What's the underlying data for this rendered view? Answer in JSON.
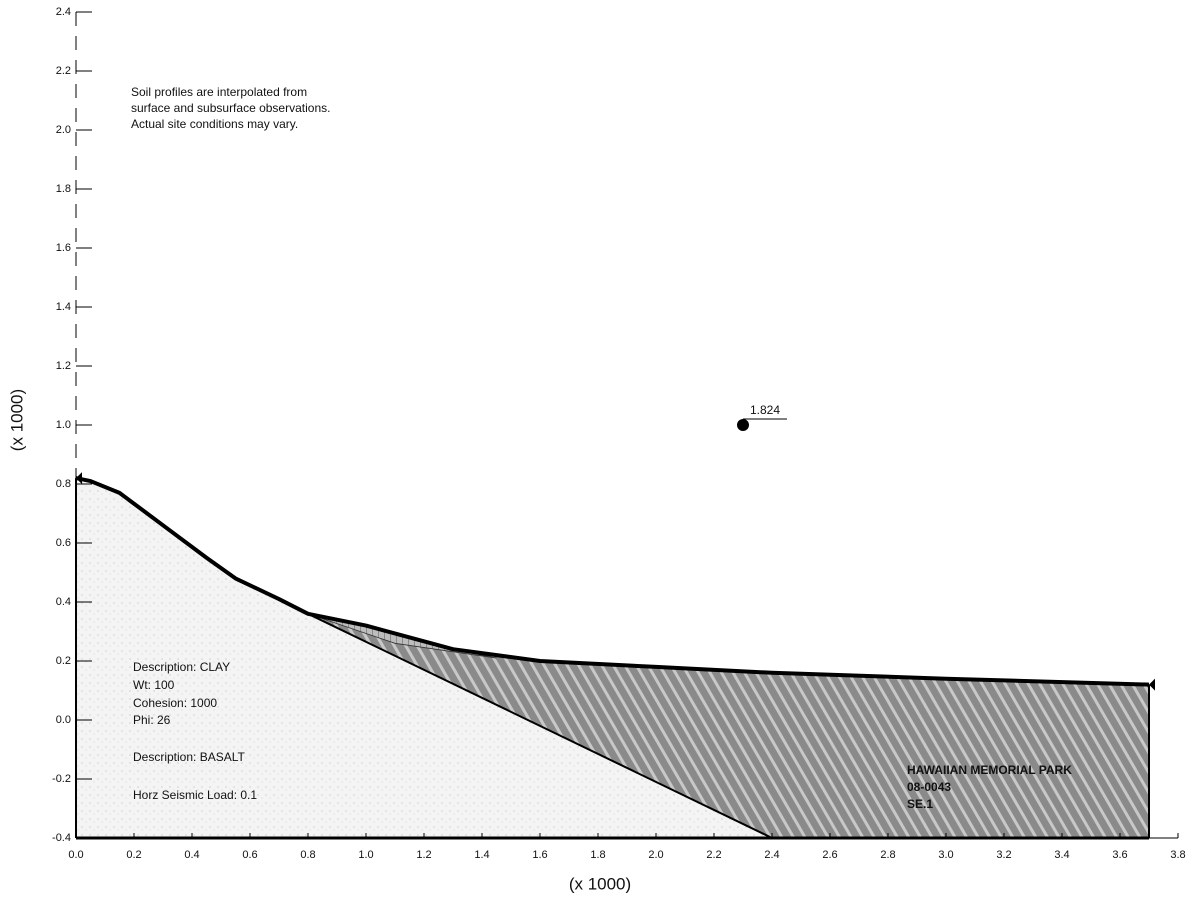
{
  "chart_data": {
    "type": "slope-profile",
    "x_label": "(x 1000)",
    "y_label": "(x 1000)",
    "xlim": [
      0,
      3.8
    ],
    "ylim": [
      -0.4,
      2.4
    ],
    "xticks": [
      {
        "value": 0,
        "label": "0.0"
      },
      0.2,
      0.4,
      0.6,
      0.8,
      {
        "value": 1,
        "label": "1.0"
      },
      1.2,
      1.4,
      1.6,
      1.8,
      {
        "value": 2,
        "label": "2.0"
      },
      2.2,
      2.4,
      2.6,
      2.8,
      {
        "value": 3,
        "label": "3.0"
      },
      3.2,
      3.4,
      3.6,
      3.8
    ],
    "yticks": [
      -0.4,
      -0.2,
      {
        "value": 0,
        "label": "0.0"
      },
      0.2,
      0.4,
      0.6,
      0.8,
      {
        "value": 1,
        "label": "1.0"
      },
      1.2,
      1.4,
      1.6,
      1.8,
      {
        "value": 2,
        "label": "2.0"
      },
      2.2,
      2.4
    ],
    "surface": {
      "x": [
        0,
        0.05,
        0.15,
        0.3,
        0.45,
        0.55,
        0.7,
        0.8,
        1.0,
        1.3,
        1.6,
        2.0,
        2.4,
        3.0,
        3.7
      ],
      "y": [
        0.82,
        0.81,
        0.77,
        0.66,
        0.55,
        0.48,
        0.41,
        0.36,
        0.32,
        0.24,
        0.2,
        0.18,
        0.16,
        0.14,
        0.12
      ]
    },
    "boundary": {
      "x": [
        0.8,
        2.4
      ],
      "y": [
        0.36,
        -0.4
      ]
    },
    "slip_zone": {
      "x": [
        0.8,
        1.1,
        1.45
      ],
      "y": [
        0.36,
        0.26,
        0.21
      ]
    },
    "center": {
      "x": 2.3,
      "y": 1.0,
      "factor_of_safety": 1.824
    },
    "note": [
      "Soil profiles are interpolated from",
      "surface and subsurface observations.",
      "Actual site conditions may vary."
    ],
    "material_labels": [
      "Description: CLAY",
      "Wt: 100",
      "Cohesion: 1000",
      "Phi: 26",
      "Description: BASALT",
      "Horz Seismic Load: 0.1"
    ],
    "project": [
      "HAWAIIAN MEMORIAL PARK",
      "08-0043",
      "SE.1"
    ]
  }
}
